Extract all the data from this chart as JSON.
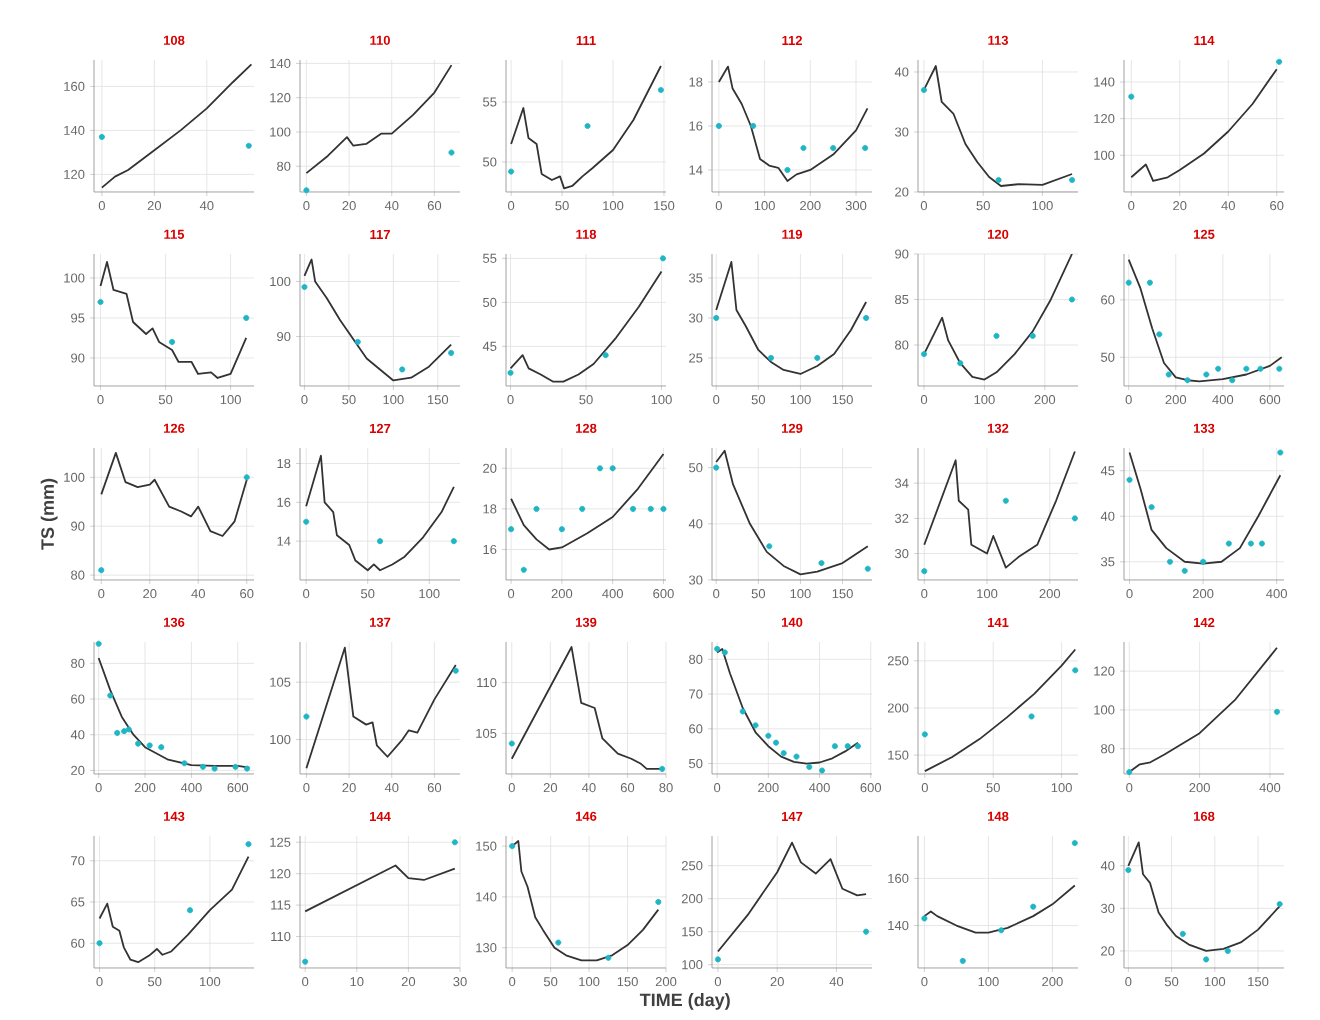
{
  "chart_data": [
    {
      "type": "line",
      "title": "108",
      "xlim": [
        -3,
        58
      ],
      "ylim": [
        112,
        172
      ],
      "xticks": [
        0,
        20,
        40
      ],
      "yticks": [
        120,
        140,
        160
      ],
      "grid": true,
      "series": [
        {
          "type": "line",
          "color": "#333333",
          "x": [
            0,
            5,
            10,
            20,
            30,
            40,
            50,
            57
          ],
          "values": [
            114,
            119,
            122,
            131,
            140,
            150,
            162,
            170
          ]
        },
        {
          "type": "scatter",
          "color": "#20b5c4",
          "marker": "circle",
          "x": [
            0,
            56
          ],
          "values": [
            137,
            133
          ]
        }
      ]
    },
    {
      "type": "line",
      "title": "110",
      "xlim": [
        -3,
        72
      ],
      "ylim": [
        65,
        142
      ],
      "xticks": [
        0,
        20,
        40,
        60
      ],
      "yticks": [
        80,
        100,
        120,
        140
      ],
      "grid": true,
      "series": [
        {
          "type": "line",
          "color": "#333333",
          "x": [
            0,
            10,
            19,
            22,
            28,
            35,
            40,
            50,
            60,
            68
          ],
          "values": [
            76,
            86,
            97,
            92,
            93,
            99,
            99,
            110,
            123,
            139
          ]
        },
        {
          "type": "scatter",
          "color": "#20b5c4",
          "marker": "circle",
          "x": [
            0,
            68
          ],
          "values": [
            66,
            88
          ]
        }
      ]
    },
    {
      "type": "line",
      "title": "111",
      "xlim": [
        -5,
        152
      ],
      "ylim": [
        47.5,
        58.5
      ],
      "xticks": [
        0,
        50,
        100,
        150
      ],
      "yticks": [
        50,
        55
      ],
      "grid": true,
      "series": [
        {
          "type": "line",
          "color": "#333333",
          "x": [
            0,
            12,
            17,
            25,
            30,
            40,
            48,
            52,
            60,
            70,
            80,
            100,
            120,
            147
          ],
          "values": [
            51.5,
            54.5,
            52,
            51.5,
            49,
            48.5,
            48.8,
            47.8,
            48,
            48.8,
            49.5,
            51,
            53.5,
            58
          ]
        },
        {
          "type": "scatter",
          "color": "#20b5c4",
          "marker": "circle",
          "x": [
            0,
            75,
            147
          ],
          "values": [
            49.2,
            53,
            56
          ]
        }
      ]
    },
    {
      "type": "line",
      "title": "112",
      "xlim": [
        -15,
        335
      ],
      "ylim": [
        13,
        19
      ],
      "xticks": [
        0,
        100,
        200,
        300
      ],
      "yticks": [
        14,
        16,
        18
      ],
      "grid": true,
      "series": [
        {
          "type": "line",
          "color": "#333333",
          "x": [
            0,
            20,
            30,
            50,
            70,
            90,
            110,
            130,
            150,
            170,
            200,
            250,
            300,
            325
          ],
          "values": [
            18,
            18.7,
            17.7,
            17,
            16,
            14.5,
            14.2,
            14.1,
            13.5,
            13.8,
            14,
            14.7,
            15.8,
            16.8
          ]
        },
        {
          "type": "scatter",
          "color": "#20b5c4",
          "marker": "circle",
          "x": [
            0,
            75,
            150,
            185,
            250,
            320
          ],
          "values": [
            16,
            16,
            14,
            15,
            15,
            15
          ]
        }
      ]
    },
    {
      "type": "line",
      "title": "113",
      "xlim": [
        -5,
        130
      ],
      "ylim": [
        20,
        42
      ],
      "xticks": [
        0,
        50,
        100
      ],
      "yticks": [
        20,
        30,
        40
      ],
      "grid": true,
      "series": [
        {
          "type": "line",
          "color": "#333333",
          "x": [
            0,
            10,
            15,
            25,
            35,
            45,
            55,
            65,
            80,
            100,
            125
          ],
          "values": [
            37,
            41,
            35,
            33,
            28,
            25,
            22.5,
            21,
            21.3,
            21.2,
            23
          ]
        },
        {
          "type": "scatter",
          "color": "#20b5c4",
          "marker": "circle",
          "x": [
            0,
            63,
            125
          ],
          "values": [
            37,
            22,
            22
          ]
        }
      ]
    },
    {
      "type": "line",
      "title": "114",
      "xlim": [
        -3,
        63
      ],
      "ylim": [
        80,
        152
      ],
      "xticks": [
        0,
        20,
        40,
        60
      ],
      "yticks": [
        100,
        120,
        140
      ],
      "grid": true,
      "series": [
        {
          "type": "line",
          "color": "#333333",
          "x": [
            0,
            6,
            9,
            15,
            20,
            30,
            40,
            50,
            60
          ],
          "values": [
            88,
            95,
            86,
            88,
            92,
            101,
            113,
            128,
            147
          ]
        },
        {
          "type": "scatter",
          "color": "#20b5c4",
          "marker": "circle",
          "x": [
            0,
            61
          ],
          "values": [
            132,
            151
          ]
        }
      ]
    },
    {
      "type": "line",
      "title": "115",
      "xlim": [
        -5,
        118
      ],
      "ylim": [
        86.5,
        103
      ],
      "xticks": [
        0,
        50,
        100
      ],
      "yticks": [
        90,
        95,
        100
      ],
      "grid": true,
      "series": [
        {
          "type": "line",
          "color": "#333333",
          "x": [
            0,
            5,
            10,
            20,
            25,
            35,
            40,
            45,
            55,
            60,
            70,
            75,
            85,
            90,
            100,
            112
          ],
          "values": [
            99,
            102,
            98.5,
            98,
            94.5,
            93,
            93.7,
            92,
            91,
            89.5,
            89.5,
            88,
            88.2,
            87.5,
            88,
            92.5
          ]
        },
        {
          "type": "scatter",
          "color": "#20b5c4",
          "marker": "circle",
          "x": [
            0,
            55,
            112
          ],
          "values": [
            97,
            92,
            95
          ]
        }
      ]
    },
    {
      "type": "line",
      "title": "117",
      "xlim": [
        -5,
        175
      ],
      "ylim": [
        81,
        105
      ],
      "xticks": [
        0,
        50,
        100,
        150
      ],
      "yticks": [
        90,
        100
      ],
      "grid": true,
      "series": [
        {
          "type": "line",
          "color": "#333333",
          "x": [
            0,
            8,
            12,
            25,
            40,
            55,
            70,
            85,
            100,
            120,
            140,
            165
          ],
          "values": [
            101,
            104,
            100,
            97,
            93,
            89.5,
            86,
            84,
            82,
            82.5,
            84.5,
            88.5
          ]
        },
        {
          "type": "scatter",
          "color": "#20b5c4",
          "marker": "circle",
          "x": [
            0,
            60,
            110,
            165
          ],
          "values": [
            99,
            89,
            84,
            87
          ]
        }
      ]
    },
    {
      "type": "line",
      "title": "118",
      "xlim": [
        -3,
        103
      ],
      "ylim": [
        40.5,
        55.5
      ],
      "xticks": [
        0,
        50,
        100
      ],
      "yticks": [
        45,
        50,
        55
      ],
      "grid": true,
      "series": [
        {
          "type": "line",
          "color": "#333333",
          "x": [
            0,
            8,
            12,
            20,
            28,
            35,
            45,
            55,
            70,
            85,
            100
          ],
          "values": [
            42.5,
            44,
            42.5,
            41.8,
            41,
            41,
            41.8,
            43,
            46,
            49.5,
            53.5
          ]
        },
        {
          "type": "scatter",
          "color": "#20b5c4",
          "marker": "circle",
          "x": [
            0,
            63,
            101
          ],
          "values": [
            42,
            44,
            55
          ]
        }
      ]
    },
    {
      "type": "line",
      "title": "119",
      "xlim": [
        -5,
        185
      ],
      "ylim": [
        21.5,
        38
      ],
      "xticks": [
        0,
        50,
        100,
        150
      ],
      "yticks": [
        25,
        30,
        35
      ],
      "grid": true,
      "series": [
        {
          "type": "line",
          "color": "#333333",
          "x": [
            0,
            18,
            24,
            35,
            50,
            65,
            80,
            100,
            120,
            140,
            160,
            178
          ],
          "values": [
            31,
            37,
            31,
            29,
            26,
            24.5,
            23.5,
            23,
            24,
            25.5,
            28.5,
            32
          ]
        },
        {
          "type": "scatter",
          "color": "#20b5c4",
          "marker": "circle",
          "x": [
            0,
            65,
            120,
            178
          ],
          "values": [
            30,
            25,
            25,
            30
          ]
        }
      ]
    },
    {
      "type": "line",
      "title": "120",
      "xlim": [
        -10,
        255
      ],
      "ylim": [
        75.5,
        90
      ],
      "xticks": [
        0,
        100,
        200
      ],
      "yticks": [
        80,
        85,
        90
      ],
      "grid": true,
      "series": [
        {
          "type": "line",
          "color": "#333333",
          "x": [
            0,
            30,
            40,
            60,
            80,
            100,
            120,
            150,
            180,
            210,
            245
          ],
          "values": [
            79,
            83,
            80.5,
            78,
            76.5,
            76.2,
            77,
            79,
            81.5,
            85,
            90
          ]
        },
        {
          "type": "scatter",
          "color": "#20b5c4",
          "marker": "circle",
          "x": [
            0,
            60,
            120,
            180,
            245
          ],
          "values": [
            79,
            78,
            81,
            81,
            85
          ]
        }
      ]
    },
    {
      "type": "line",
      "title": "125",
      "xlim": [
        -20,
        660
      ],
      "ylim": [
        45,
        68
      ],
      "xticks": [
        0,
        200,
        400,
        600
      ],
      "yticks": [
        50,
        60
      ],
      "grid": true,
      "series": [
        {
          "type": "line",
          "color": "#333333",
          "x": [
            0,
            50,
            100,
            150,
            200,
            250,
            300,
            400,
            500,
            600,
            650
          ],
          "values": [
            67,
            62,
            55,
            49,
            46.5,
            46,
            45.8,
            46.2,
            47,
            48.5,
            50
          ]
        },
        {
          "type": "scatter",
          "color": "#20b5c4",
          "marker": "circle",
          "x": [
            0,
            90,
            130,
            170,
            250,
            330,
            380,
            440,
            500,
            560,
            640
          ],
          "values": [
            63,
            63,
            54,
            47,
            46,
            47,
            48,
            46,
            48,
            48,
            48
          ]
        }
      ]
    },
    {
      "type": "line",
      "title": "126",
      "ylabel": "TS (mm)",
      "xlim": [
        -3,
        63
      ],
      "ylim": [
        79,
        106
      ],
      "xticks": [
        0,
        20,
        40,
        60
      ],
      "yticks": [
        80,
        90,
        100
      ],
      "grid": true,
      "series": [
        {
          "type": "line",
          "color": "#333333",
          "x": [
            0,
            6,
            10,
            15,
            20,
            22,
            28,
            33,
            37,
            40,
            45,
            50,
            55,
            60
          ],
          "values": [
            96.5,
            105,
            99,
            98,
            98.5,
            99.5,
            94,
            93,
            92,
            94,
            89,
            88,
            91,
            99.5
          ]
        },
        {
          "type": "scatter",
          "color": "#20b5c4",
          "marker": "circle",
          "x": [
            0,
            60
          ],
          "values": [
            81,
            100
          ]
        }
      ]
    },
    {
      "type": "line",
      "title": "127",
      "xlim": [
        -5,
        125
      ],
      "ylim": [
        12,
        18.8
      ],
      "xticks": [
        0,
        50,
        100
      ],
      "yticks": [
        14,
        16,
        18
      ],
      "grid": true,
      "series": [
        {
          "type": "line",
          "color": "#333333",
          "x": [
            0,
            12,
            15,
            22,
            25,
            35,
            40,
            50,
            55,
            60,
            70,
            80,
            95,
            110,
            120
          ],
          "values": [
            15.8,
            18.4,
            16,
            15.5,
            14.3,
            13.8,
            13,
            12.5,
            12.8,
            12.5,
            12.8,
            13.2,
            14.2,
            15.5,
            16.8
          ]
        },
        {
          "type": "scatter",
          "color": "#20b5c4",
          "marker": "circle",
          "x": [
            0,
            60,
            120
          ],
          "values": [
            15,
            14,
            14
          ]
        }
      ]
    },
    {
      "type": "line",
      "title": "128",
      "xlim": [
        -20,
        610
      ],
      "ylim": [
        14.5,
        21
      ],
      "xticks": [
        0,
        200,
        400,
        600
      ],
      "yticks": [
        16,
        18,
        20
      ],
      "grid": true,
      "series": [
        {
          "type": "line",
          "color": "#333333",
          "x": [
            0,
            50,
            100,
            150,
            200,
            300,
            400,
            500,
            600
          ],
          "values": [
            18.5,
            17.2,
            16.5,
            16,
            16.1,
            16.8,
            17.6,
            19,
            20.7
          ]
        },
        {
          "type": "scatter",
          "color": "#20b5c4",
          "marker": "circle",
          "x": [
            0,
            50,
            100,
            200,
            280,
            350,
            400,
            480,
            550,
            600
          ],
          "values": [
            17,
            15,
            18,
            17,
            18,
            20,
            20,
            18,
            18,
            18
          ]
        }
      ]
    },
    {
      "type": "line",
      "title": "129",
      "xlim": [
        -5,
        185
      ],
      "ylim": [
        30,
        53.5
      ],
      "xticks": [
        0,
        50,
        100,
        150
      ],
      "yticks": [
        30,
        40,
        50
      ],
      "grid": true,
      "series": [
        {
          "type": "line",
          "color": "#333333",
          "x": [
            0,
            10,
            20,
            40,
            60,
            80,
            100,
            120,
            150,
            180
          ],
          "values": [
            51,
            53,
            47,
            40,
            35,
            32.5,
            31,
            31.5,
            33,
            36
          ]
        },
        {
          "type": "scatter",
          "color": "#20b5c4",
          "marker": "circle",
          "x": [
            0,
            63,
            125,
            180
          ],
          "values": [
            50,
            36,
            33,
            32
          ]
        }
      ]
    },
    {
      "type": "line",
      "title": "132",
      "xlim": [
        -10,
        245
      ],
      "ylim": [
        28.5,
        36
      ],
      "xticks": [
        0,
        100,
        200
      ],
      "yticks": [
        30,
        32,
        34
      ],
      "grid": true,
      "series": [
        {
          "type": "line",
          "color": "#333333",
          "x": [
            0,
            50,
            55,
            70,
            75,
            100,
            110,
            130,
            150,
            180,
            210,
            240
          ],
          "values": [
            30.5,
            35.3,
            33,
            32.5,
            30.5,
            30,
            31,
            29.2,
            29.8,
            30.5,
            33,
            35.8
          ]
        },
        {
          "type": "scatter",
          "color": "#20b5c4",
          "marker": "circle",
          "x": [
            0,
            130,
            240
          ],
          "values": [
            29,
            33,
            32
          ]
        }
      ]
    },
    {
      "type": "line",
      "title": "133",
      "xlim": [
        -15,
        420
      ],
      "ylim": [
        33,
        47.5
      ],
      "xticks": [
        0,
        200,
        400
      ],
      "yticks": [
        35,
        40,
        45
      ],
      "grid": true,
      "series": [
        {
          "type": "line",
          "color": "#333333",
          "x": [
            0,
            30,
            60,
            100,
            150,
            200,
            250,
            300,
            350,
            410
          ],
          "values": [
            47,
            43,
            38.5,
            36.5,
            35,
            34.8,
            35,
            36.5,
            40,
            44.5
          ]
        },
        {
          "type": "scatter",
          "color": "#20b5c4",
          "marker": "circle",
          "x": [
            0,
            60,
            110,
            150,
            200,
            270,
            330,
            360,
            410
          ],
          "values": [
            44,
            41,
            35,
            34,
            35,
            37,
            37,
            37,
            47
          ]
        }
      ]
    },
    {
      "type": "line",
      "title": "136",
      "xlim": [
        -20,
        670
      ],
      "ylim": [
        18,
        92
      ],
      "xticks": [
        0,
        200,
        400,
        600
      ],
      "yticks": [
        20,
        40,
        60,
        80
      ],
      "grid": true,
      "series": [
        {
          "type": "line",
          "color": "#333333",
          "x": [
            0,
            50,
            100,
            150,
            200,
            300,
            400,
            500,
            600,
            650
          ],
          "values": [
            83,
            65,
            50,
            40,
            33,
            26,
            23,
            22.5,
            22.5,
            21.5
          ]
        },
        {
          "type": "scatter",
          "color": "#20b5c4",
          "marker": "circle",
          "x": [
            0,
            50,
            80,
            110,
            130,
            170,
            220,
            270,
            370,
            450,
            500,
            590,
            640
          ],
          "values": [
            91,
            62,
            41,
            42,
            43,
            35,
            34,
            33,
            24,
            22,
            21,
            22,
            21
          ]
        }
      ]
    },
    {
      "type": "line",
      "title": "137",
      "xlim": [
        -3,
        72
      ],
      "ylim": [
        97,
        108.5
      ],
      "xticks": [
        0,
        20,
        40,
        60
      ],
      "yticks": [
        100,
        105
      ],
      "grid": true,
      "series": [
        {
          "type": "line",
          "color": "#333333",
          "x": [
            0,
            18,
            22,
            28,
            31,
            33,
            38,
            45,
            48,
            52,
            60,
            70
          ],
          "values": [
            97.5,
            108,
            102,
            101.3,
            101.5,
            99.5,
            98.5,
            100,
            100.8,
            100.6,
            103.5,
            106.5
          ]
        },
        {
          "type": "scatter",
          "color": "#20b5c4",
          "marker": "circle",
          "x": [
            0,
            70
          ],
          "values": [
            102,
            106
          ]
        }
      ]
    },
    {
      "type": "line",
      "title": "139",
      "xlim": [
        -3,
        80
      ],
      "ylim": [
        101,
        114
      ],
      "xticks": [
        0,
        20,
        40,
        60,
        80
      ],
      "yticks": [
        105,
        110
      ],
      "grid": true,
      "series": [
        {
          "type": "line",
          "color": "#333333",
          "x": [
            0,
            31,
            36,
            43,
            47,
            55,
            62,
            67,
            70,
            78
          ],
          "values": [
            102.5,
            113.5,
            108,
            107.5,
            104.5,
            103,
            102.5,
            102,
            101.5,
            101.5
          ]
        },
        {
          "type": "scatter",
          "color": "#20b5c4",
          "marker": "circle",
          "x": [
            0,
            78
          ],
          "values": [
            104,
            101.5
          ]
        }
      ]
    },
    {
      "type": "line",
      "title": "140",
      "xlim": [
        -20,
        605
      ],
      "ylim": [
        47,
        85
      ],
      "xticks": [
        0,
        200,
        400,
        600
      ],
      "yticks": [
        50,
        60,
        70,
        80
      ],
      "grid": true,
      "series": [
        {
          "type": "line",
          "color": "#333333",
          "x": [
            0,
            20,
            50,
            100,
            150,
            200,
            250,
            300,
            350,
            400,
            450,
            500,
            550
          ],
          "values": [
            82,
            83,
            76,
            66,
            59,
            55,
            52,
            50.5,
            50,
            50.3,
            51.5,
            53.5,
            56
          ]
        },
        {
          "type": "scatter",
          "color": "#20b5c4",
          "marker": "circle",
          "x": [
            0,
            30,
            100,
            150,
            200,
            230,
            260,
            310,
            360,
            410,
            460,
            510,
            550
          ],
          "values": [
            83,
            82,
            65,
            61,
            58,
            56,
            53,
            52,
            49,
            48,
            55,
            55,
            55
          ]
        }
      ]
    },
    {
      "type": "line",
      "title": "141",
      "xlim": [
        -5,
        112
      ],
      "ylim": [
        130,
        270
      ],
      "xticks": [
        0,
        50,
        100
      ],
      "yticks": [
        150,
        200,
        250
      ],
      "grid": true,
      "series": [
        {
          "type": "line",
          "color": "#333333",
          "x": [
            0,
            20,
            40,
            60,
            80,
            100,
            110
          ],
          "values": [
            133,
            148,
            167,
            190,
            215,
            245,
            262
          ]
        },
        {
          "type": "scatter",
          "color": "#20b5c4",
          "marker": "circle",
          "x": [
            0,
            78,
            110
          ],
          "values": [
            172,
            191,
            240
          ]
        }
      ]
    },
    {
      "type": "line",
      "title": "142",
      "xlim": [
        -15,
        440
      ],
      "ylim": [
        67,
        135
      ],
      "xticks": [
        0,
        200,
        400
      ],
      "yticks": [
        80,
        100,
        120
      ],
      "grid": true,
      "series": [
        {
          "type": "line",
          "color": "#333333",
          "x": [
            0,
            30,
            60,
            100,
            200,
            300,
            420
          ],
          "values": [
            68,
            72,
            73,
            77,
            88,
            105,
            132
          ]
        },
        {
          "type": "scatter",
          "color": "#20b5c4",
          "marker": "circle",
          "x": [
            0,
            420
          ],
          "values": [
            68,
            99
          ]
        }
      ]
    },
    {
      "type": "line",
      "title": "143",
      "xlim": [
        -5,
        140
      ],
      "ylim": [
        57,
        73
      ],
      "xticks": [
        0,
        50,
        100
      ],
      "yticks": [
        60,
        65,
        70
      ],
      "grid": true,
      "series": [
        {
          "type": "line",
          "color": "#333333",
          "x": [
            0,
            7,
            12,
            18,
            22,
            28,
            35,
            45,
            52,
            57,
            65,
            80,
            100,
            120,
            135
          ],
          "values": [
            63,
            64.8,
            62,
            61.5,
            59.5,
            58,
            57.7,
            58.5,
            59.3,
            58.6,
            59,
            61,
            64,
            66.5,
            70.5
          ]
        },
        {
          "type": "scatter",
          "color": "#20b5c4",
          "marker": "circle",
          "x": [
            0,
            82,
            135
          ],
          "values": [
            60,
            64,
            72
          ]
        }
      ]
    },
    {
      "type": "line",
      "title": "144",
      "xlim": [
        -1,
        30
      ],
      "ylim": [
        105,
        126
      ],
      "xticks": [
        0,
        10,
        20,
        30
      ],
      "yticks": [
        110,
        115,
        120,
        125
      ],
      "grid": true,
      "series": [
        {
          "type": "line",
          "color": "#333333",
          "x": [
            0,
            17.5,
            20,
            23,
            29
          ],
          "values": [
            114,
            121.3,
            119.3,
            119,
            120.8
          ]
        },
        {
          "type": "scatter",
          "color": "#20b5c4",
          "marker": "circle",
          "x": [
            0,
            29
          ],
          "values": [
            106,
            125
          ]
        }
      ]
    },
    {
      "type": "line",
      "title": "146",
      "xlabel": "TIME (day)",
      "xlim": [
        -8,
        200
      ],
      "ylim": [
        126,
        152
      ],
      "xticks": [
        0,
        50,
        100,
        150,
        200
      ],
      "yticks": [
        130,
        140,
        150
      ],
      "grid": true,
      "series": [
        {
          "type": "line",
          "color": "#333333",
          "x": [
            0,
            8,
            12,
            20,
            30,
            40,
            55,
            70,
            90,
            110,
            130,
            150,
            170,
            190
          ],
          "values": [
            150,
            151,
            145,
            142,
            136,
            133.5,
            130,
            128.5,
            127.5,
            127.5,
            128.5,
            130.5,
            133.5,
            137.5
          ]
        },
        {
          "type": "scatter",
          "color": "#20b5c4",
          "marker": "circle",
          "x": [
            0,
            60,
            125,
            190
          ],
          "values": [
            150,
            131,
            128,
            139
          ]
        }
      ]
    },
    {
      "type": "line",
      "title": "147",
      "xlim": [
        -2,
        52
      ],
      "ylim": [
        95,
        295
      ],
      "xticks": [
        0,
        20,
        40
      ],
      "yticks": [
        100,
        150,
        200,
        250
      ],
      "grid": true,
      "series": [
        {
          "type": "line",
          "color": "#333333",
          "x": [
            0,
            10,
            20,
            25,
            28,
            33,
            38,
            42,
            47,
            50
          ],
          "values": [
            120,
            175,
            240,
            285,
            255,
            238,
            260,
            215,
            205,
            207
          ]
        },
        {
          "type": "scatter",
          "color": "#20b5c4",
          "marker": "circle",
          "x": [
            0,
            50
          ],
          "values": [
            108,
            150
          ]
        }
      ]
    },
    {
      "type": "line",
      "title": "148",
      "xlim": [
        -10,
        240
      ],
      "ylim": [
        122,
        178
      ],
      "xticks": [
        0,
        100,
        200
      ],
      "yticks": [
        140,
        160
      ],
      "grid": true,
      "series": [
        {
          "type": "line",
          "color": "#333333",
          "x": [
            0,
            10,
            20,
            50,
            80,
            100,
            130,
            170,
            200,
            235
          ],
          "values": [
            144,
            146,
            144,
            140,
            137,
            137,
            139,
            144,
            149,
            157
          ]
        },
        {
          "type": "scatter",
          "color": "#20b5c4",
          "marker": "circle",
          "x": [
            0,
            60,
            120,
            170,
            235
          ],
          "values": [
            143,
            125,
            138,
            148,
            175
          ]
        }
      ]
    },
    {
      "type": "line",
      "title": "168",
      "xlim": [
        -5,
        180
      ],
      "ylim": [
        16,
        47
      ],
      "xticks": [
        0,
        50,
        100,
        150
      ],
      "yticks": [
        20,
        30,
        40
      ],
      "grid": true,
      "series": [
        {
          "type": "line",
          "color": "#333333",
          "x": [
            0,
            12,
            17,
            25,
            35,
            45,
            55,
            70,
            90,
            110,
            130,
            150,
            175
          ],
          "values": [
            40,
            45.5,
            38,
            36,
            29,
            26,
            23.5,
            21.5,
            20,
            20.5,
            22,
            25,
            30.5
          ]
        },
        {
          "type": "scatter",
          "color": "#20b5c4",
          "marker": "circle",
          "x": [
            0,
            63,
            90,
            115,
            175
          ],
          "values": [
            39,
            24,
            18,
            20,
            31
          ]
        }
      ]
    }
  ]
}
